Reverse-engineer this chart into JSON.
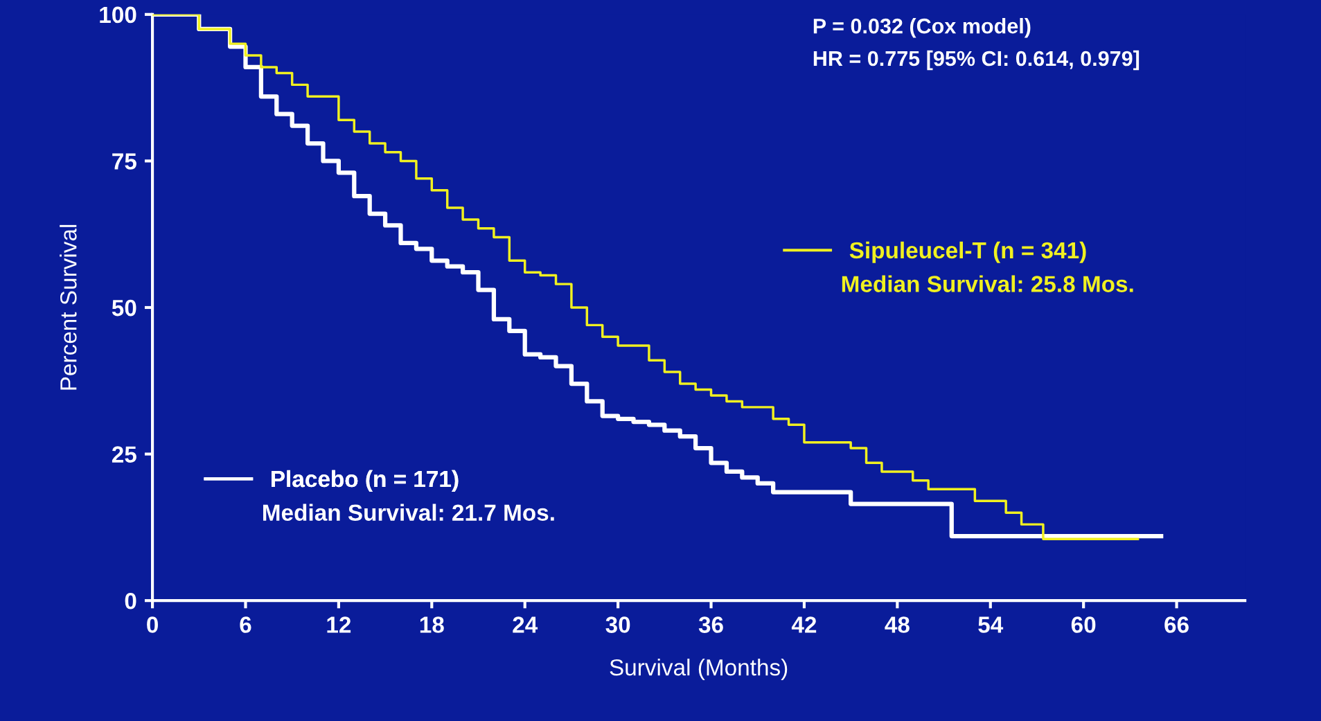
{
  "chart_data": {
    "type": "step",
    "xlabel": "Survival (Months)",
    "ylabel": "Percent Survival",
    "xlim": [
      0,
      70.4
    ],
    "xticks": [
      0,
      6,
      12,
      18,
      24,
      30,
      36,
      42,
      48,
      54,
      60,
      66
    ],
    "ylim": [
      0,
      100
    ],
    "yticks": [
      0,
      25,
      50,
      75,
      100
    ],
    "grid": false,
    "legend": "right",
    "series": [
      {
        "name": "Sipuleucel-T (n = 341)",
        "color": "#f0f020",
        "x": [
          0,
          1.5,
          3,
          5,
          6,
          7,
          8,
          9,
          10,
          12,
          13,
          14,
          15,
          16,
          17,
          18,
          19,
          20,
          21,
          22,
          23,
          24,
          25,
          26,
          27,
          28,
          29,
          30,
          31,
          32,
          33,
          34,
          35,
          36,
          37,
          38,
          40,
          41,
          42,
          44,
          45,
          46,
          47,
          48,
          49,
          50,
          52,
          53,
          54,
          55,
          56,
          57.4,
          63.5
        ],
        "values": [
          100,
          100,
          97.5,
          95,
          93,
          91,
          90,
          88,
          86,
          82,
          80,
          78,
          76.5,
          75,
          72,
          70,
          67,
          65,
          63.5,
          62,
          58,
          56,
          55.5,
          54,
          50,
          47,
          45,
          43.5,
          43.5,
          41,
          39,
          37,
          36,
          35,
          34,
          33,
          31,
          30,
          27,
          27,
          26,
          23.5,
          22,
          22,
          20.5,
          19,
          19,
          17,
          17,
          15,
          13,
          10.5,
          10.5
        ]
      },
      {
        "name": "Placebo (n = 171)",
        "color": "#ffffff",
        "x": [
          0,
          1.5,
          3,
          5,
          6,
          7,
          8,
          9,
          10,
          11,
          12,
          13,
          14,
          15,
          16,
          17,
          18,
          19,
          20,
          21,
          22,
          23,
          24,
          25,
          26,
          27,
          28,
          29,
          30,
          31,
          32,
          33,
          34,
          35,
          36,
          37,
          38,
          39,
          40,
          44,
          45,
          51.5,
          65
        ],
        "values": [
          100,
          100,
          97.5,
          94.5,
          91,
          86,
          83,
          81,
          78,
          75,
          73,
          69,
          66,
          64,
          61,
          60,
          58,
          57,
          56,
          53,
          48,
          46,
          42,
          41.5,
          40,
          37,
          34,
          31.5,
          31,
          30.5,
          30,
          29,
          28,
          26,
          23.5,
          22,
          21,
          20,
          18.5,
          18.5,
          16.5,
          11,
          11
        ]
      }
    ],
    "annotations": [
      "P = 0.032 (Cox model)",
      "HR = 0.775 [95% CI: 0.614, 0.979]",
      "Median Survival: 25.8 Mos.",
      "Median Survival: 21.7 Mos."
    ]
  }
}
